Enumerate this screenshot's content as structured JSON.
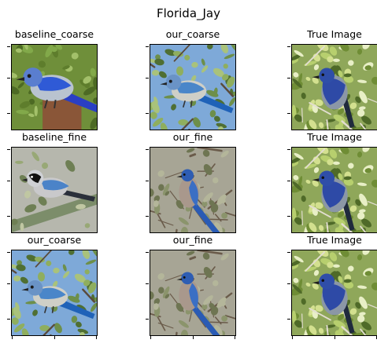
{
  "suptitle": "Florida_Jay",
  "panels": [
    {
      "title": "baseline_coarse",
      "scene": "bird-close"
    },
    {
      "title": "our_coarse",
      "scene": "bird-sky"
    },
    {
      "title": "True Image",
      "scene": "scrub-jay-leaves"
    },
    {
      "title": "baseline_fine",
      "scene": "bird-grey"
    },
    {
      "title": "our_fine",
      "scene": "bird-branches"
    },
    {
      "title": "True Image",
      "scene": "scrub-jay-leaves"
    },
    {
      "title": "our_coarse",
      "scene": "bird-sky"
    },
    {
      "title": "our_fine",
      "scene": "bird-branches"
    },
    {
      "title": "True Image",
      "scene": "scrub-jay-leaves"
    }
  ]
}
